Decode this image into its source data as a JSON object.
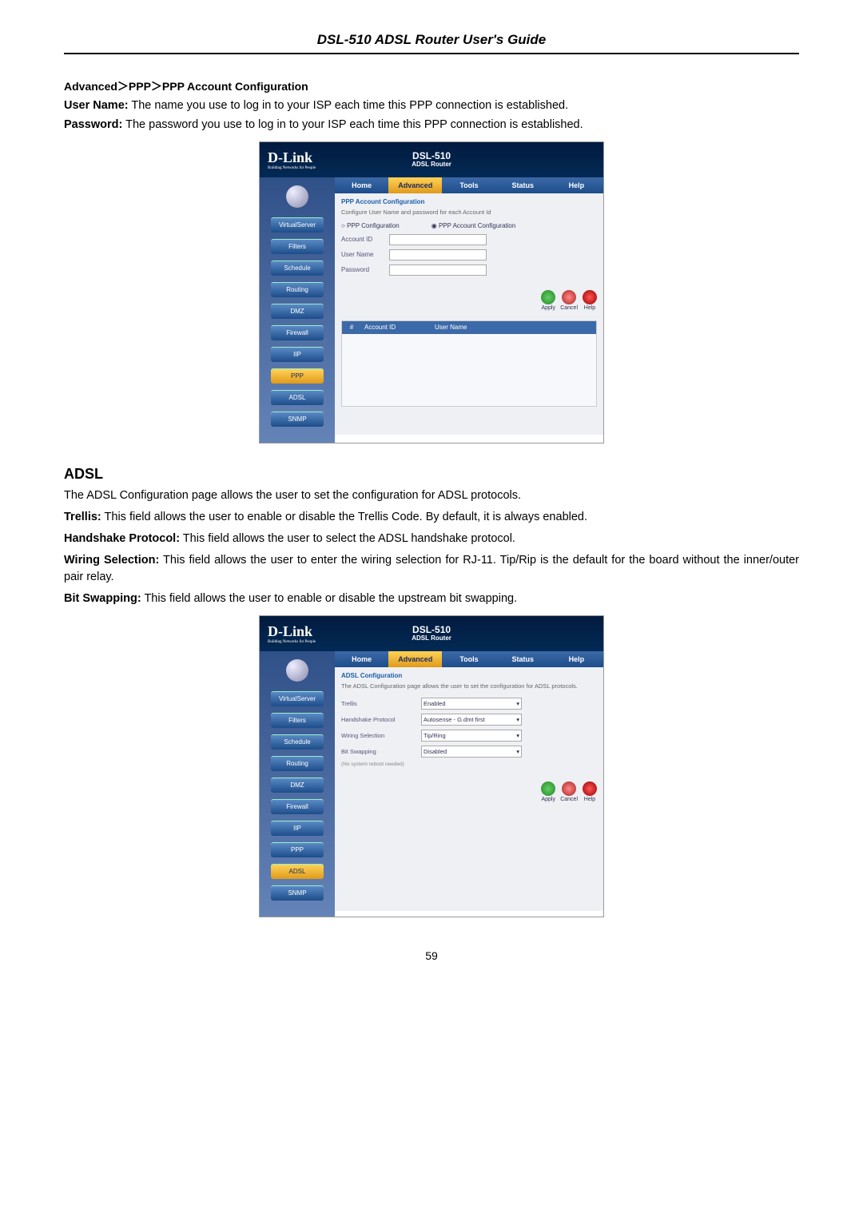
{
  "header": {
    "title": "DSL-510 ADSL Router User's Guide"
  },
  "breadcrumb": "Advanced＞PPP＞PPP Account Configuration",
  "ppp": {
    "lines": [
      {
        "b": "User Name:",
        "t": " The name you use to log in to your ISP each time this PPP connection is established."
      },
      {
        "b": "Password:",
        "t": " The password you use to log in to your ISP each time this PPP connection is established."
      }
    ]
  },
  "adsl": {
    "heading": "ADSL",
    "intro": "The ADSL Configuration page allows the user to set the configuration for ADSL protocols.",
    "lines": [
      {
        "b": "Trellis:",
        "t": " This field allows the user to enable or disable the Trellis Code. By default, it is always enabled."
      },
      {
        "b": "Handshake Protocol:",
        "t": " This field allows the user to select the ADSL handshake protocol."
      },
      {
        "b": "Wiring Selection:",
        "t": " This field allows the user to enter the wiring selection for RJ-11. Tip/Rip is the default for the board without the inner/outer pair relay."
      },
      {
        "b": "Bit Swapping:",
        "t": " This field allows the user to enable or disable the upstream bit swapping."
      }
    ]
  },
  "shot": {
    "logo": "D-Link",
    "tagline": "Building Networks for People",
    "devtitle": "DSL-510",
    "devsub": "ADSL Router",
    "tabs": [
      "Home",
      "Advanced",
      "Tools",
      "Status",
      "Help"
    ],
    "side": [
      "VirtualServer",
      "Filters",
      "Schedule",
      "Routing",
      "DMZ",
      "Firewall",
      "IIP",
      "PPP",
      "ADSL",
      "SNMP"
    ]
  },
  "shot1": {
    "sideActive": "PPP",
    "paneTitle": "PPP Account Configuration",
    "paneDesc": "Configure User Name and password for each Account Id",
    "radios": [
      "PPP Configuration",
      "PPP Account Configuration"
    ],
    "fields": [
      "Account ID",
      "User Name",
      "Password"
    ],
    "actions": [
      "Apply",
      "Cancel",
      "Help"
    ],
    "tblCols": [
      "#",
      "Account ID",
      "User Name"
    ]
  },
  "shot2": {
    "sideActive": "ADSL",
    "paneTitle": "ADSL Configuration",
    "paneDesc": "The ADSL Configuration page allows the user to set the configuration for ADSL protocols.",
    "rows": [
      {
        "label": "Trellis",
        "value": "Enabled"
      },
      {
        "label": "Handshake Protocol",
        "value": "Autosense - G.dmt first"
      },
      {
        "label": "Wiring Selection",
        "value": "Tip/Ring"
      },
      {
        "label": "Bit Swapping",
        "value": "Disabled"
      }
    ],
    "hint": "(No system reboot needed)",
    "actions": [
      "Apply",
      "Cancel",
      "Help"
    ]
  },
  "pagenum": "59"
}
